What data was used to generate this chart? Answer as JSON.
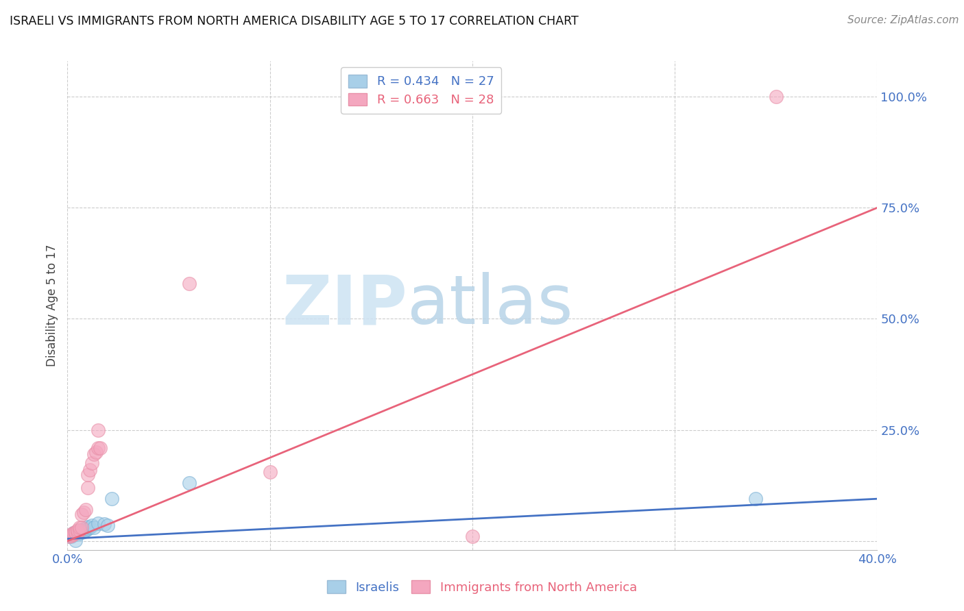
{
  "title": "ISRAELI VS IMMIGRANTS FROM NORTH AMERICA DISABILITY AGE 5 TO 17 CORRELATION CHART",
  "source": "Source: ZipAtlas.com",
  "ylabel_label": "Disability Age 5 to 17",
  "xlim": [
    0.0,
    0.4
  ],
  "ylim": [
    -0.02,
    1.08
  ],
  "xticks": [
    0.0,
    0.1,
    0.2,
    0.3,
    0.4
  ],
  "xtick_labels": [
    "0.0%",
    "",
    "",
    "",
    "40.0%"
  ],
  "ytick_positions": [
    0.0,
    0.25,
    0.5,
    0.75,
    1.0
  ],
  "ytick_labels": [
    "",
    "25.0%",
    "50.0%",
    "75.0%",
    "100.0%"
  ],
  "legend_r_blue": "R = 0.434",
  "legend_n_blue": "N = 27",
  "legend_r_pink": "R = 0.663",
  "legend_n_pink": "N = 28",
  "blue_color": "#a8cfe8",
  "pink_color": "#f4a7bf",
  "blue_line_color": "#4472c4",
  "pink_line_color": "#e8637a",
  "grid_color": "#cccccc",
  "watermark_zip": "ZIP",
  "watermark_atlas": "atlas",
  "watermark_color_zip": "#c5dff0",
  "watermark_color_atlas": "#b8d4e8",
  "israelis_x": [
    0.001,
    0.002,
    0.002,
    0.003,
    0.003,
    0.004,
    0.005,
    0.005,
    0.006,
    0.006,
    0.007,
    0.007,
    0.008,
    0.008,
    0.009,
    0.01,
    0.01,
    0.011,
    0.012,
    0.013,
    0.015,
    0.018,
    0.02,
    0.022,
    0.06,
    0.34,
    0.004
  ],
  "israelis_y": [
    0.01,
    0.01,
    0.012,
    0.015,
    0.018,
    0.02,
    0.015,
    0.022,
    0.018,
    0.025,
    0.02,
    0.025,
    0.022,
    0.028,
    0.025,
    0.028,
    0.032,
    0.03,
    0.035,
    0.03,
    0.04,
    0.038,
    0.035,
    0.095,
    0.13,
    0.095,
    0.002
  ],
  "immigrants_x": [
    0.001,
    0.002,
    0.002,
    0.003,
    0.003,
    0.004,
    0.004,
    0.005,
    0.005,
    0.006,
    0.006,
    0.007,
    0.007,
    0.008,
    0.009,
    0.01,
    0.01,
    0.011,
    0.012,
    0.013,
    0.014,
    0.015,
    0.015,
    0.016,
    0.06,
    0.1,
    0.2,
    0.35
  ],
  "immigrants_y": [
    0.01,
    0.012,
    0.015,
    0.015,
    0.018,
    0.018,
    0.02,
    0.02,
    0.025,
    0.025,
    0.03,
    0.03,
    0.06,
    0.065,
    0.07,
    0.12,
    0.15,
    0.16,
    0.175,
    0.195,
    0.2,
    0.21,
    0.25,
    0.21,
    0.58,
    0.155,
    0.01,
    1.0
  ],
  "blue_line_x": [
    0.0,
    0.4
  ],
  "blue_line_y": [
    0.005,
    0.095
  ],
  "pink_line_x": [
    0.0,
    0.4
  ],
  "pink_line_y": [
    0.0,
    0.75
  ]
}
